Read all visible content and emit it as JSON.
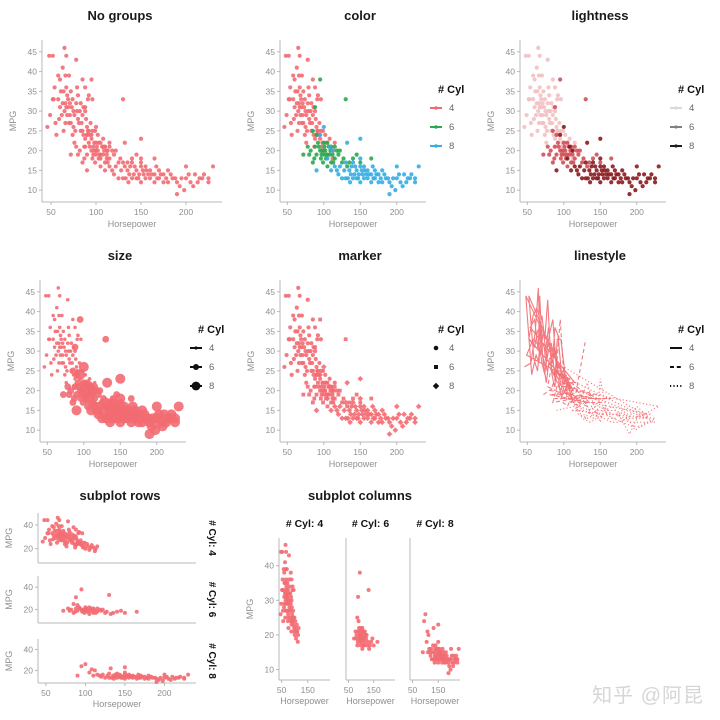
{
  "watermark": "知乎 @阿昆",
  "colors": {
    "red": "#f26b72",
    "green": "#2aa84f",
    "blue": "#35ade3",
    "light4": "#f2c0c2",
    "mid6": "#d05058",
    "dark8": "#8a1a1e",
    "gray4": "#d9d9d9",
    "gray6": "#808080",
    "gray8": "#1f1f1f",
    "black": "#111111",
    "axis": "#b8b8b8",
    "tick": "#8f8f8f",
    "title": "#1a1a1a",
    "legend_label": "#666666",
    "watermark": "#d6d6d6"
  },
  "dataset": {
    "x_field": "Horsepower",
    "y_field": "MPG",
    "group_field": "# Cyl",
    "group_labels": {
      "cyl4": "4",
      "cyl6": "6",
      "cyl8": "8"
    },
    "series": {
      "cyl4": [
        [
          46,
          26
        ],
        [
          48,
          44
        ],
        [
          49,
          29
        ],
        [
          52,
          33
        ],
        [
          52,
          44
        ],
        [
          53,
          33
        ],
        [
          54,
          36
        ],
        [
          55,
          27
        ],
        [
          56,
          24
        ],
        [
          58,
          33
        ],
        [
          58,
          39
        ],
        [
          59,
          28
        ],
        [
          60,
          31
        ],
        [
          60,
          38
        ],
        [
          61,
          35
        ],
        [
          62,
          29
        ],
        [
          63,
          32
        ],
        [
          63,
          41
        ],
        [
          64,
          25
        ],
        [
          64,
          35
        ],
        [
          65,
          30
        ],
        [
          65,
          46
        ],
        [
          66,
          27
        ],
        [
          66,
          32
        ],
        [
          66,
          39
        ],
        [
          67,
          31
        ],
        [
          67,
          36
        ],
        [
          67,
          44
        ],
        [
          68,
          29
        ],
        [
          68,
          34
        ],
        [
          69,
          31
        ],
        [
          69,
          33
        ],
        [
          70,
          27
        ],
        [
          70,
          39
        ],
        [
          71,
          29
        ],
        [
          71,
          32
        ],
        [
          72,
          27
        ],
        [
          72,
          35
        ],
        [
          73,
          31
        ],
        [
          74,
          24
        ],
        [
          74,
          33
        ],
        [
          75,
          26
        ],
        [
          75,
          30
        ],
        [
          76,
          22
        ],
        [
          76,
          29
        ],
        [
          77,
          25
        ],
        [
          78,
          32
        ],
        [
          78,
          43
        ],
        [
          79,
          30
        ],
        [
          79,
          36
        ],
        [
          80,
          28
        ],
        [
          80,
          34
        ],
        [
          81,
          27
        ],
        [
          82,
          30
        ],
        [
          83,
          25
        ],
        [
          83,
          32
        ],
        [
          84,
          27
        ],
        [
          85,
          29
        ],
        [
          85,
          38
        ],
        [
          86,
          24
        ],
        [
          86,
          31
        ],
        [
          87,
          21
        ],
        [
          88,
          23
        ],
        [
          88,
          30
        ],
        [
          88,
          36
        ],
        [
          89,
          28
        ],
        [
          90,
          24
        ],
        [
          90,
          26
        ],
        [
          91,
          25
        ],
        [
          91,
          33
        ],
        [
          92,
          25
        ],
        [
          92,
          34
        ],
        [
          93,
          24
        ],
        [
          94,
          27
        ],
        [
          95,
          23
        ],
        [
          96,
          25
        ],
        [
          96,
          33
        ],
        [
          97,
          21
        ],
        [
          98,
          22
        ],
        [
          99,
          25
        ],
        [
          100,
          20
        ],
        [
          102,
          24
        ],
        [
          103,
          22
        ],
        [
          105,
          19
        ],
        [
          107,
          21
        ],
        [
          108,
          23
        ],
        [
          110,
          21
        ],
        [
          112,
          18
        ],
        [
          113,
          20
        ],
        [
          115,
          22
        ]
      ],
      "cyl6": [
        [
          72,
          19
        ],
        [
          78,
          21
        ],
        [
          80,
          19
        ],
        [
          82,
          20
        ],
        [
          85,
          17
        ],
        [
          85,
          25
        ],
        [
          87,
          18
        ],
        [
          88,
          21
        ],
        [
          88,
          31
        ],
        [
          90,
          19
        ],
        [
          90,
          24
        ],
        [
          92,
          22
        ],
        [
          93,
          21
        ],
        [
          95,
          20
        ],
        [
          95,
          38
        ],
        [
          96,
          18
        ],
        [
          97,
          19
        ],
        [
          98,
          20
        ],
        [
          99,
          17
        ],
        [
          100,
          19
        ],
        [
          100,
          22
        ],
        [
          101,
          21
        ],
        [
          102,
          20
        ],
        [
          103,
          18
        ],
        [
          104,
          19
        ],
        [
          105,
          16
        ],
        [
          105,
          22
        ],
        [
          107,
          21
        ],
        [
          108,
          19
        ],
        [
          109,
          20
        ],
        [
          110,
          17
        ],
        [
          110,
          21
        ],
        [
          112,
          19
        ],
        [
          113,
          17
        ],
        [
          115,
          18
        ],
        [
          115,
          21
        ],
        [
          118,
          20
        ],
        [
          120,
          19
        ],
        [
          122,
          20
        ],
        [
          125,
          17
        ],
        [
          127,
          18
        ],
        [
          130,
          33
        ],
        [
          132,
          16
        ],
        [
          135,
          17
        ],
        [
          140,
          18
        ],
        [
          145,
          19
        ],
        [
          150,
          17
        ],
        [
          165,
          18
        ]
      ],
      "cyl8": [
        [
          90,
          15
        ],
        [
          95,
          24
        ],
        [
          100,
          26
        ],
        [
          105,
          18
        ],
        [
          108,
          21
        ],
        [
          110,
          15
        ],
        [
          112,
          20
        ],
        [
          115,
          16
        ],
        [
          118,
          15
        ],
        [
          120,
          14
        ],
        [
          122,
          16
        ],
        [
          125,
          13
        ],
        [
          128,
          15
        ],
        [
          130,
          13
        ],
        [
          130,
          17
        ],
        [
          132,
          22
        ],
        [
          133,
          13
        ],
        [
          135,
          15
        ],
        [
          136,
          12
        ],
        [
          137,
          14
        ],
        [
          138,
          16
        ],
        [
          140,
          13
        ],
        [
          140,
          17
        ],
        [
          142,
          14
        ],
        [
          143,
          16
        ],
        [
          145,
          13
        ],
        [
          145,
          15
        ],
        [
          147,
          13
        ],
        [
          148,
          14
        ],
        [
          150,
          12
        ],
        [
          150,
          16
        ],
        [
          150,
          18
        ],
        [
          150,
          23
        ],
        [
          152,
          15
        ],
        [
          153,
          14
        ],
        [
          155,
          13
        ],
        [
          155,
          16
        ],
        [
          156,
          15
        ],
        [
          158,
          14
        ],
        [
          160,
          13
        ],
        [
          160,
          15
        ],
        [
          162,
          14
        ],
        [
          165,
          12
        ],
        [
          165,
          14
        ],
        [
          167,
          16
        ],
        [
          168,
          13
        ],
        [
          170,
          13
        ],
        [
          170,
          15
        ],
        [
          172,
          14
        ],
        [
          175,
          12
        ],
        [
          175,
          14
        ],
        [
          178,
          13
        ],
        [
          180,
          12
        ],
        [
          180,
          15
        ],
        [
          183,
          14
        ],
        [
          185,
          13
        ],
        [
          188,
          13
        ],
        [
          190,
          9
        ],
        [
          190,
          12
        ],
        [
          193,
          11
        ],
        [
          195,
          13
        ],
        [
          198,
          10
        ],
        [
          200,
          13
        ],
        [
          200,
          16
        ],
        [
          203,
          14
        ],
        [
          205,
          12
        ],
        [
          208,
          11
        ],
        [
          210,
          14
        ],
        [
          213,
          12
        ],
        [
          215,
          13
        ],
        [
          218,
          13
        ],
        [
          220,
          14
        ],
        [
          225,
          12
        ],
        [
          225,
          13
        ],
        [
          230,
          16
        ]
      ]
    }
  },
  "chart_data": [
    {
      "id": "no-groups",
      "type": "scatter",
      "title": "No groups",
      "xlabel": "Horsepower",
      "ylabel": "MPG",
      "xlim": [
        40,
        240
      ],
      "ylim": [
        7,
        48
      ],
      "xticks": [
        50,
        100,
        150,
        200
      ],
      "yticks": [
        10,
        15,
        20,
        25,
        30,
        35,
        40,
        45
      ],
      "encoding": "none",
      "group_colors": [
        "red",
        "red",
        "red"
      ],
      "legend": null
    },
    {
      "id": "color",
      "type": "scatter",
      "title": "color",
      "xlabel": "Horsepower",
      "ylabel": "MPG",
      "xlim": [
        40,
        240
      ],
      "ylim": [
        7,
        48
      ],
      "xticks": [
        50,
        100,
        150,
        200
      ],
      "yticks": [
        10,
        15,
        20,
        25,
        30,
        35,
        40,
        45
      ],
      "encoding": "color",
      "group_colors": [
        "red",
        "green",
        "blue"
      ],
      "legend": {
        "title": "# Cyl",
        "entries": [
          {
            "label": "4",
            "line": "red",
            "dash": "solid",
            "shape": "circle",
            "r": 1.7,
            "fill": "red"
          },
          {
            "label": "6",
            "line": "green",
            "dash": "solid",
            "shape": "circle",
            "r": 1.7,
            "fill": "green"
          },
          {
            "label": "8",
            "line": "blue",
            "dash": "solid",
            "shape": "circle",
            "r": 1.7,
            "fill": "blue"
          }
        ]
      }
    },
    {
      "id": "lightness",
      "type": "scatter",
      "title": "lightness",
      "xlabel": "Horsepower",
      "ylabel": "MPG",
      "xlim": [
        40,
        240
      ],
      "ylim": [
        7,
        48
      ],
      "xticks": [
        50,
        100,
        150,
        200
      ],
      "yticks": [
        10,
        15,
        20,
        25,
        30,
        35,
        40,
        45
      ],
      "encoding": "lightness",
      "group_colors": [
        "light4",
        "mid6",
        "dark8"
      ],
      "legend": {
        "title": "# Cyl",
        "entries": [
          {
            "label": "4",
            "line": "gray4",
            "dash": "solid",
            "shape": "circle",
            "r": 1.6,
            "fill": "gray4"
          },
          {
            "label": "6",
            "line": "gray6",
            "dash": "solid",
            "shape": "circle",
            "r": 1.6,
            "fill": "gray6"
          },
          {
            "label": "8",
            "line": "gray8",
            "dash": "solid",
            "shape": "circle",
            "r": 1.6,
            "fill": "gray8"
          }
        ]
      }
    },
    {
      "id": "size",
      "type": "scatter",
      "title": "size",
      "xlabel": "Horsepower",
      "ylabel": "MPG",
      "xlim": [
        40,
        240
      ],
      "ylim": [
        7,
        48
      ],
      "xticks": [
        50,
        100,
        150,
        200
      ],
      "yticks": [
        10,
        15,
        20,
        25,
        30,
        35,
        40,
        45
      ],
      "encoding": "size",
      "group_colors": [
        "red",
        "red",
        "red"
      ],
      "group_sizes": [
        1.8,
        3.4,
        5.0
      ],
      "legend": {
        "title": "# Cyl",
        "entries": [
          {
            "label": "4",
            "line": "black",
            "dash": "solid",
            "shape": "circle",
            "r": 1.6,
            "fill": "black"
          },
          {
            "label": "6",
            "line": "black",
            "dash": "solid",
            "shape": "circle",
            "r": 3.0,
            "fill": "black"
          },
          {
            "label": "8",
            "line": "black",
            "dash": "solid",
            "shape": "circle",
            "r": 4.4,
            "fill": "black"
          }
        ]
      }
    },
    {
      "id": "marker",
      "type": "scatter",
      "title": "marker",
      "xlabel": "Horsepower",
      "ylabel": "MPG",
      "xlim": [
        40,
        240
      ],
      "ylim": [
        7,
        48
      ],
      "xticks": [
        50,
        100,
        150,
        200
      ],
      "yticks": [
        10,
        15,
        20,
        25,
        30,
        35,
        40,
        45
      ],
      "encoding": "marker",
      "group_colors": [
        "red",
        "red",
        "red"
      ],
      "group_shapes": [
        "circle",
        "square",
        "diamond"
      ],
      "legend": {
        "title": "# Cyl",
        "entries": [
          {
            "label": "4",
            "shape": "circle",
            "r": 2.3,
            "fill": "black"
          },
          {
            "label": "6",
            "shape": "square",
            "r": 2.2,
            "fill": "black"
          },
          {
            "label": "8",
            "shape": "diamond",
            "r": 2.4,
            "fill": "black"
          }
        ]
      }
    },
    {
      "id": "linestyle",
      "type": "line",
      "title": "linestyle",
      "xlabel": "Horsepower",
      "ylabel": "MPG",
      "xlim": [
        40,
        240
      ],
      "ylim": [
        7,
        48
      ],
      "xticks": [
        50,
        100,
        150,
        200
      ],
      "yticks": [
        10,
        15,
        20,
        25,
        30,
        35,
        40,
        45
      ],
      "encoding": "linestyle",
      "group_colors": [
        "red",
        "red",
        "red"
      ],
      "group_dashes": [
        "solid",
        "dashed",
        "dotted"
      ],
      "legend": {
        "title": "# Cyl",
        "entries": [
          {
            "label": "4",
            "line": "black",
            "dash": "solid"
          },
          {
            "label": "6",
            "line": "black",
            "dash": "dashed"
          },
          {
            "label": "8",
            "line": "black",
            "dash": "dotted"
          }
        ]
      }
    },
    {
      "id": "subplot-rows",
      "type": "scatter-rows",
      "title": "subplot rows",
      "xlabel": "Horsepower",
      "ylabel": "MPG",
      "xlim": [
        40,
        240
      ],
      "ylim": [
        8,
        50
      ],
      "xticks": [
        50,
        100,
        150,
        200
      ],
      "yticks": [
        20,
        40
      ],
      "row_labels": [
        "# Cyl: 4",
        "# Cyl: 6",
        "# Cyl: 8"
      ],
      "group_colors": [
        "red",
        "red",
        "red"
      ]
    },
    {
      "id": "subplot-columns",
      "type": "scatter-cols",
      "title": "subplot columns",
      "xlabel": "Horsepower",
      "ylabel": "MPG",
      "xlim": [
        40,
        235
      ],
      "ylim": [
        7,
        48
      ],
      "xticks": [
        50,
        150
      ],
      "yticks": [
        10,
        20,
        30,
        40
      ],
      "col_labels": [
        "# Cyl: 4",
        "# Cyl: 6",
        "# Cyl: 8"
      ],
      "group_colors": [
        "red",
        "red",
        "red"
      ]
    }
  ]
}
